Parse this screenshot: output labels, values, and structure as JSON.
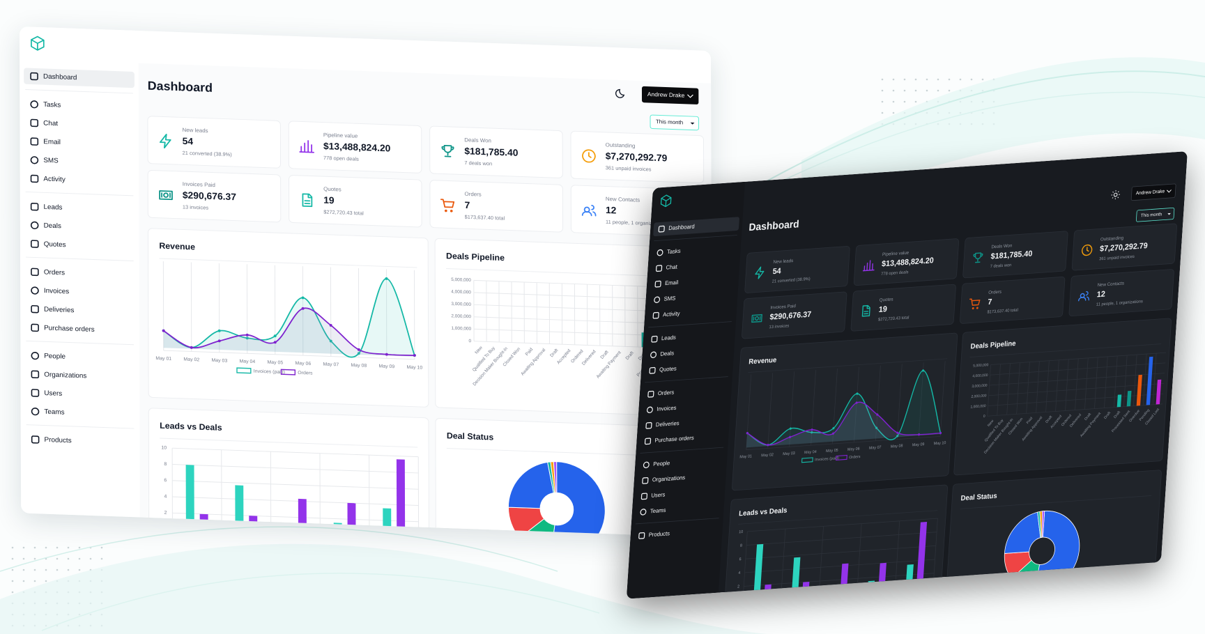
{
  "app": {
    "title": "Dashboard",
    "user": "Andrew Drake",
    "period": "This month"
  },
  "nav": [
    "Dashboard",
    "Tasks",
    "Chat",
    "Email",
    "SMS",
    "Activity",
    "Leads",
    "Deals",
    "Quotes",
    "Orders",
    "Invoices",
    "Deliveries",
    "Purchase orders",
    "People",
    "Organizations",
    "Users",
    "Teams",
    "Products"
  ],
  "stats": [
    {
      "label": "New leads",
      "value": "54",
      "sub": "21 converted (38.9%)",
      "color": "#14b8a6"
    },
    {
      "label": "Pipeline value",
      "value": "$13,488,824.20",
      "sub": "778 open deals",
      "color": "#9333ea"
    },
    {
      "label": "Deals Won",
      "value": "$181,785.40",
      "sub": "7 deals won",
      "color": "#0d9488"
    },
    {
      "label": "Outstanding",
      "value": "$7,270,292.79",
      "sub": "361 unpaid invoices",
      "color": "#f59e0b"
    },
    {
      "label": "Invoices Paid",
      "value": "$290,676.37",
      "sub": "13 invoices",
      "color": "#0d9488"
    },
    {
      "label": "Quotes",
      "value": "19",
      "sub": "$272,720.43 total",
      "color": "#14b8a6"
    },
    {
      "label": "Orders",
      "value": "7",
      "sub": "$173,637.40 total",
      "color": "#ea580c"
    },
    {
      "label": "New Contacts",
      "value": "12",
      "sub": "11 people, 1 organizations",
      "color": "#3b82f6"
    }
  ],
  "revenue": {
    "type": "line",
    "title": "Revenue",
    "categories": [
      "May 01",
      "May 02",
      "May 03",
      "May 04",
      "May 05",
      "May 06",
      "May 07",
      "May 08",
      "May 09",
      "May 10"
    ],
    "series": [
      {
        "name": "Invoices (paid)",
        "color": "#14b8a6",
        "values": [
          27,
          2,
          30,
          20,
          25,
          87,
          20,
          2,
          122,
          2
        ]
      },
      {
        "name": "Orders",
        "color": "#7e22ce",
        "values": [
          27,
          2,
          14,
          25,
          15,
          70,
          45,
          8,
          2,
          2
        ]
      }
    ]
  },
  "deals_pipeline": {
    "type": "bar",
    "title": "Deals Pipeline",
    "categories": [
      "New",
      "Qualified To Buy",
      "Decision Maker Bought-In",
      "Closed Won",
      "Paid",
      "Awaiting Approval",
      "Draft",
      "Accepted",
      "Ordered",
      "Delivered",
      "Draft",
      "Awaiting Payment",
      "Draft",
      "Draft",
      "Processed Sent",
      "Overdue",
      "Pending",
      "Closed Lost"
    ],
    "values": [
      0,
      0,
      0,
      0,
      0,
      0,
      0,
      0,
      0,
      0,
      0,
      0,
      0,
      1200000,
      1500000,
      3000000,
      4700000,
      2400000
    ],
    "colors": [
      "#14b8a6",
      "#14b8a6",
      "#14b8a6",
      "#14b8a6",
      "#14b8a6",
      "#14b8a6",
      "#14b8a6",
      "#14b8a6",
      "#14b8a6",
      "#14b8a6",
      "#14b8a6",
      "#14b8a6",
      "#14b8a6",
      "#14b8a6",
      "#0d9488",
      "#ea580c",
      "#2563eb",
      "#c026d3"
    ],
    "ylim": [
      0,
      5000000
    ],
    "yticks": [
      0,
      {
        "value": 1000000,
        "label": "1,000,000"
      },
      {
        "value": 2000000,
        "label": "2,000,000"
      },
      {
        "value": 3000000,
        "label": "3,000,000"
      },
      {
        "value": 4000000,
        "label": "4,000,000"
      },
      {
        "value": 5000000,
        "label": "5,000,000"
      }
    ],
    "grid": true
  },
  "leads_vs_deals": {
    "type": "bar",
    "title": "Leads vs Deals",
    "series": [
      {
        "color": "#2dd4bf",
        "values": [
          8,
          5.7,
          1,
          1.5,
          3.5
        ]
      },
      {
        "color": "#9333ea",
        "values": [
          2,
          2,
          4.3,
          4,
          9.6
        ]
      }
    ],
    "ylim": [
      0,
      10
    ],
    "yticks": [
      0,
      2,
      4,
      6,
      8,
      10
    ],
    "grid": true
  },
  "deal_status": {
    "type": "pie",
    "title": "Deal Status",
    "values": [
      52,
      12,
      11,
      22,
      1,
      1,
      1
    ],
    "colors": [
      "#2563eb",
      "#10b981",
      "#ef4444",
      "#2563eb",
      "#14b8a6",
      "#f59e0b",
      "#a855f7"
    ]
  }
}
